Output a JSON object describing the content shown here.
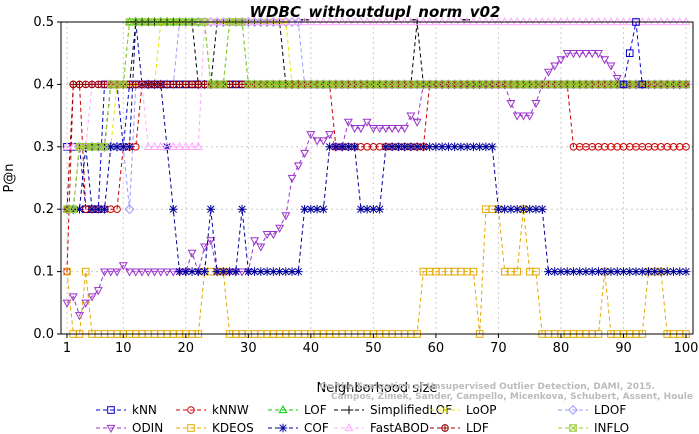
{
  "chart_data": {
    "type": "line",
    "title": "WDBC_withoutdupl_norm_v02",
    "xlabel": "Neighborhood size",
    "ylabel": "P@n",
    "xlim": [
      1,
      100
    ],
    "ylim": [
      0,
      0.5
    ],
    "xticks": [
      "1",
      "10",
      "20",
      "30",
      "40",
      "50",
      "60",
      "70",
      "80",
      "90",
      "100"
    ],
    "yticks": [
      "0.0",
      "0.1",
      "0.2",
      "0.3",
      "0.4",
      "0.5"
    ],
    "grid": true,
    "legend_position": "bottom",
    "credit_lines": [
      "Campos, Zimek, Sander, Campello, Micenkova, Schubert, Assent, Houle",
      "On the Evaluation of Unsupervised Outlier Detection, DAMI, 2015."
    ],
    "series": [
      {
        "name": "kNN",
        "color": "#0000cc",
        "marker": "square",
        "points": [
          [
            1,
            0.3
          ],
          [
            3,
            0.3
          ],
          [
            4,
            0.2
          ],
          [
            6,
            0.2
          ],
          [
            7,
            0.4
          ],
          [
            9,
            0.4
          ],
          [
            10,
            0.3
          ],
          [
            11,
            0.4
          ],
          [
            100,
            0.4
          ]
        ]
      },
      {
        "name": "kNNW",
        "color": "#cc0000",
        "marker": "circle",
        "points": [
          [
            1,
            0.1
          ],
          [
            2,
            0.4
          ],
          [
            3,
            0.4
          ],
          [
            4,
            0.2
          ],
          [
            9,
            0.2
          ],
          [
            10,
            0.3
          ],
          [
            12,
            0.3
          ],
          [
            13,
            0.4
          ],
          [
            43,
            0.4
          ],
          [
            44,
            0.3
          ],
          [
            58,
            0.3
          ],
          [
            59,
            0.4
          ],
          [
            80,
            0.4
          ],
          [
            82,
            0.3
          ],
          [
            100,
            0.3
          ]
        ]
      },
      {
        "name": "LOF",
        "color": "#00cc00",
        "marker": "triangle-up",
        "points": [
          [
            1,
            0.2
          ],
          [
            2,
            0.2
          ],
          [
            3,
            0.3
          ],
          [
            7,
            0.3
          ],
          [
            8,
            0.4
          ],
          [
            10,
            0.4
          ],
          [
            11,
            0.5
          ],
          [
            23,
            0.5
          ],
          [
            24,
            0.4
          ],
          [
            26,
            0.4
          ],
          [
            27,
            0.5
          ],
          [
            29,
            0.5
          ],
          [
            30,
            0.4
          ],
          [
            100,
            0.4
          ]
        ]
      },
      {
        "name": "SimplifiedLOF",
        "color": "#000000",
        "marker": "plus",
        "points": [
          [
            1,
            0.2
          ],
          [
            2,
            0.2
          ],
          [
            3,
            0.3
          ],
          [
            7,
            0.3
          ],
          [
            8,
            0.4
          ],
          [
            11,
            0.4
          ],
          [
            12,
            0.5
          ],
          [
            21,
            0.5
          ],
          [
            22,
            0.4
          ],
          [
            24,
            0.4
          ],
          [
            25,
            0.5
          ],
          [
            35,
            0.5
          ],
          [
            36,
            0.4
          ],
          [
            56,
            0.4
          ],
          [
            57,
            0.5
          ],
          [
            58,
            0.4
          ],
          [
            100,
            0.4
          ]
        ]
      },
      {
        "name": "LoOP",
        "color": "#e6e600",
        "marker": "x",
        "points": [
          [
            1,
            0.2
          ],
          [
            2,
            0.2
          ],
          [
            3,
            0.3
          ],
          [
            8,
            0.3
          ],
          [
            9,
            0.4
          ],
          [
            15,
            0.4
          ],
          [
            16,
            0.5
          ],
          [
            36,
            0.5
          ],
          [
            37,
            0.4
          ],
          [
            100,
            0.4
          ]
        ]
      },
      {
        "name": "LDOF",
        "color": "#9999ff",
        "marker": "diamond",
        "points": [
          [
            1,
            0.2
          ],
          [
            2,
            0.2
          ],
          [
            3,
            0.3
          ],
          [
            10,
            0.3
          ],
          [
            11,
            0.2
          ],
          [
            12,
            0.4
          ],
          [
            18,
            0.4
          ],
          [
            19,
            0.5
          ],
          [
            38,
            0.5
          ],
          [
            39,
            0.4
          ],
          [
            100,
            0.4
          ]
        ]
      },
      {
        "name": "ODIN",
        "color": "#9933cc",
        "marker": "triangle-down",
        "points": [
          [
            1,
            0.05
          ],
          [
            2,
            0.06
          ],
          [
            3,
            0.03
          ],
          [
            4,
            0.05
          ],
          [
            5,
            0.06
          ],
          [
            6,
            0.07
          ],
          [
            7,
            0.1
          ],
          [
            8,
            0.1
          ],
          [
            9,
            0.1
          ],
          [
            10,
            0.11
          ],
          [
            11,
            0.1
          ],
          [
            20,
            0.1
          ],
          [
            21,
            0.13
          ],
          [
            22,
            0.1
          ],
          [
            23,
            0.14
          ],
          [
            24,
            0.15
          ],
          [
            25,
            0.1
          ],
          [
            29,
            0.1
          ],
          [
            30,
            0.1
          ],
          [
            31,
            0.15
          ],
          [
            32,
            0.14
          ],
          [
            33,
            0.16
          ],
          [
            34,
            0.16
          ],
          [
            35,
            0.17
          ],
          [
            36,
            0.19
          ],
          [
            37,
            0.25
          ],
          [
            38,
            0.27
          ],
          [
            39,
            0.29
          ],
          [
            40,
            0.32
          ],
          [
            41,
            0.31
          ],
          [
            42,
            0.31
          ],
          [
            43,
            0.32
          ],
          [
            44,
            0.3
          ],
          [
            45,
            0.3
          ],
          [
            46,
            0.34
          ],
          [
            47,
            0.33
          ],
          [
            48,
            0.33
          ],
          [
            49,
            0.34
          ],
          [
            50,
            0.33
          ],
          [
            55,
            0.33
          ],
          [
            56,
            0.35
          ],
          [
            57,
            0.34
          ],
          [
            58,
            0.4
          ],
          [
            71,
            0.4
          ],
          [
            72,
            0.37
          ],
          [
            73,
            0.35
          ],
          [
            74,
            0.35
          ],
          [
            75,
            0.35
          ],
          [
            76,
            0.37
          ],
          [
            77,
            0.4
          ],
          [
            78,
            0.42
          ],
          [
            79,
            0.43
          ],
          [
            80,
            0.44
          ],
          [
            81,
            0.45
          ],
          [
            86,
            0.45
          ],
          [
            87,
            0.44
          ],
          [
            88,
            0.43
          ],
          [
            89,
            0.41
          ],
          [
            90,
            0.4
          ],
          [
            100,
            0.4
          ]
        ]
      },
      {
        "name": "KDEOS",
        "color": "#e6a800",
        "marker": "square",
        "points": [
          [
            1,
            0.1
          ],
          [
            2,
            0.0
          ],
          [
            3,
            0.0
          ],
          [
            4,
            0.1
          ],
          [
            5,
            0.0
          ],
          [
            22,
            0.0
          ],
          [
            23,
            0.1
          ],
          [
            26,
            0.1
          ],
          [
            27,
            0.0
          ],
          [
            57,
            0.0
          ],
          [
            58,
            0.1
          ],
          [
            63,
            0.1
          ],
          [
            64,
            0.1
          ],
          [
            66,
            0.1
          ],
          [
            67,
            0.0
          ],
          [
            68,
            0.2
          ],
          [
            70,
            0.2
          ],
          [
            71,
            0.1
          ],
          [
            73,
            0.1
          ],
          [
            74,
            0.2
          ],
          [
            75,
            0.1
          ],
          [
            76,
            0.1
          ],
          [
            77,
            0.0
          ],
          [
            86,
            0.0
          ],
          [
            87,
            0.1
          ],
          [
            88,
            0.0
          ],
          [
            93,
            0.0
          ],
          [
            94,
            0.1
          ],
          [
            96,
            0.1
          ],
          [
            97,
            0.0
          ],
          [
            100,
            0.0
          ]
        ]
      },
      {
        "name": "COF",
        "color": "#000099",
        "marker": "star",
        "points": [
          [
            1,
            0.2
          ],
          [
            3,
            0.2
          ],
          [
            4,
            0.3
          ],
          [
            5,
            0.2
          ],
          [
            7,
            0.2
          ],
          [
            8,
            0.3
          ],
          [
            11,
            0.3
          ],
          [
            12,
            0.5
          ],
          [
            13,
            0.4
          ],
          [
            16,
            0.4
          ],
          [
            17,
            0.3
          ],
          [
            18,
            0.2
          ],
          [
            19,
            0.1
          ],
          [
            23,
            0.1
          ],
          [
            24,
            0.2
          ],
          [
            25,
            0.1
          ],
          [
            28,
            0.1
          ],
          [
            29,
            0.2
          ],
          [
            30,
            0.1
          ],
          [
            38,
            0.1
          ],
          [
            39,
            0.2
          ],
          [
            42,
            0.2
          ],
          [
            43,
            0.3
          ],
          [
            47,
            0.3
          ],
          [
            48,
            0.2
          ],
          [
            51,
            0.2
          ],
          [
            52,
            0.3
          ],
          [
            60,
            0.3
          ],
          [
            61,
            0.3
          ],
          [
            69,
            0.3
          ],
          [
            70,
            0.2
          ],
          [
            77,
            0.2
          ],
          [
            78,
            0.1
          ],
          [
            100,
            0.1
          ]
        ]
      },
      {
        "name": "FastABOD",
        "color": "#ffaaff",
        "marker": "triangle-up",
        "points": [
          [
            1,
            0.3
          ],
          [
            4,
            0.3
          ],
          [
            5,
            0.4
          ],
          [
            13,
            0.4
          ],
          [
            14,
            0.3
          ],
          [
            22,
            0.3
          ],
          [
            23,
            0.5
          ],
          [
            48,
            0.5
          ],
          [
            49,
            0.5
          ],
          [
            100,
            0.5
          ]
        ]
      },
      {
        "name": "LDF",
        "color": "#990000",
        "marker": "circle-plus",
        "points": [
          [
            1,
            0.2
          ],
          [
            2,
            0.4
          ],
          [
            92,
            0.4
          ],
          [
            93,
            0.4
          ],
          [
            100,
            0.4
          ]
        ]
      },
      {
        "name": "INFLO",
        "color": "#99cc33",
        "marker": "square-x",
        "points": [
          [
            1,
            0.2
          ],
          [
            2,
            0.2
          ],
          [
            3,
            0.3
          ],
          [
            7,
            0.3
          ],
          [
            8,
            0.4
          ],
          [
            10,
            0.4
          ],
          [
            11,
            0.5
          ],
          [
            23,
            0.5
          ],
          [
            24,
            0.4
          ],
          [
            26,
            0.4
          ],
          [
            27,
            0.5
          ],
          [
            29,
            0.5
          ],
          [
            30,
            0.4
          ],
          [
            100,
            0.4
          ]
        ]
      },
      {
        "name": "",
        "color": "#0000cc",
        "marker": "square",
        "points": [
          [
            90,
            0.4
          ],
          [
            91,
            0.45
          ],
          [
            92,
            0.5
          ],
          [
            93,
            0.4
          ]
        ]
      }
    ]
  }
}
